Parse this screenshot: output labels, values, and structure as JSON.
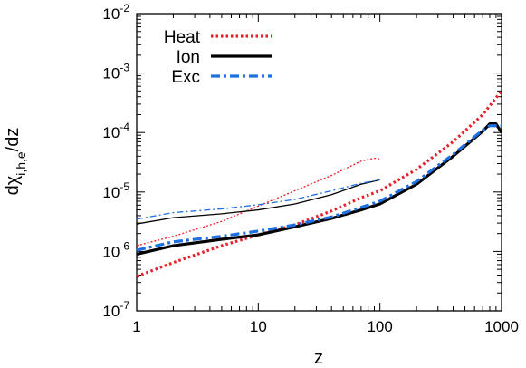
{
  "chart_data": {
    "type": "line",
    "title": "",
    "xlabel": "z",
    "ylabel_main": "dχ",
    "ylabel_sub": "i,h,e",
    "ylabel_tail": "/dz",
    "xscale": "log",
    "yscale": "log",
    "xlim": [
      1,
      1000
    ],
    "ylim": [
      1e-07,
      0.01
    ],
    "grid": false,
    "legend_position": "top-left",
    "x_ticks": [
      {
        "value": 1,
        "label": "1"
      },
      {
        "value": 10,
        "label": "10"
      },
      {
        "value": 100,
        "label": "100"
      },
      {
        "value": 1000,
        "label": "1000"
      }
    ],
    "y_ticks": [
      {
        "value": 1e-07,
        "base": "10",
        "exp": "-7"
      },
      {
        "value": 1e-06,
        "base": "10",
        "exp": "-6"
      },
      {
        "value": 1e-05,
        "base": "10",
        "exp": "-5"
      },
      {
        "value": 0.0001,
        "base": "10",
        "exp": "-4"
      },
      {
        "value": 0.001,
        "base": "10",
        "exp": "-3"
      },
      {
        "value": 0.01,
        "base": "10",
        "exp": "-2"
      }
    ],
    "series": [
      {
        "name": "Heat",
        "color": "#e8202a",
        "dash": "dotted",
        "weight": "thick",
        "in_legend": true,
        "points": [
          [
            1,
            3.8e-07
          ],
          [
            2,
            6.5e-07
          ],
          [
            5,
            1.25e-06
          ],
          [
            10,
            1.9e-06
          ],
          [
            20,
            2.8e-06
          ],
          [
            40,
            4.8e-06
          ],
          [
            70,
            8e-06
          ],
          [
            100,
            1.05e-05
          ],
          [
            200,
            2.4e-05
          ],
          [
            400,
            7e-05
          ],
          [
            700,
            0.0002
          ],
          [
            1000,
            0.0005
          ]
        ]
      },
      {
        "name": "Ion",
        "color": "#000000",
        "dash": "solid",
        "weight": "thick",
        "in_legend": true,
        "points": [
          [
            1,
            9e-07
          ],
          [
            2,
            1.25e-06
          ],
          [
            5,
            1.6e-06
          ],
          [
            10,
            1.9e-06
          ],
          [
            20,
            2.6e-06
          ],
          [
            40,
            3.6e-06
          ],
          [
            70,
            5e-06
          ],
          [
            100,
            6.3e-06
          ],
          [
            200,
            1.35e-05
          ],
          [
            400,
            4e-05
          ],
          [
            700,
            0.000105
          ],
          [
            800,
            0.00014
          ],
          [
            900,
            0.00014
          ],
          [
            1000,
            0.0001
          ]
        ]
      },
      {
        "name": "Exc",
        "color": "#1e6fe0",
        "dash": "dashdot",
        "weight": "thick",
        "in_legend": true,
        "points": [
          [
            1,
            1.05e-06
          ],
          [
            2,
            1.45e-06
          ],
          [
            5,
            1.8e-06
          ],
          [
            10,
            2.2e-06
          ],
          [
            20,
            2.8e-06
          ],
          [
            40,
            3.8e-06
          ],
          [
            70,
            5.5e-06
          ],
          [
            100,
            7e-06
          ],
          [
            200,
            1.5e-05
          ],
          [
            400,
            4.3e-05
          ],
          [
            700,
            0.00011
          ],
          [
            800,
            0.00013
          ],
          [
            1000,
            0.00013
          ]
        ]
      },
      {
        "name": "Heat (thin)",
        "color": "#e8202a",
        "dash": "dotted",
        "weight": "thin",
        "in_legend": false,
        "points": [
          [
            1,
            1.25e-06
          ],
          [
            2,
            1.8e-06
          ],
          [
            5,
            3.2e-06
          ],
          [
            10,
            5.8e-06
          ],
          [
            20,
            1.05e-05
          ],
          [
            40,
            1.9e-05
          ],
          [
            70,
            3.3e-05
          ],
          [
            90,
            3.7e-05
          ],
          [
            100,
            3.6e-05
          ]
        ]
      },
      {
        "name": "Ion (thin)",
        "color": "#000000",
        "dash": "solid",
        "weight": "thin",
        "in_legend": false,
        "points": [
          [
            1,
            2.9e-06
          ],
          [
            2,
            3.7e-06
          ],
          [
            5,
            4.3e-06
          ],
          [
            10,
            5e-06
          ],
          [
            20,
            6.3e-06
          ],
          [
            40,
            9e-06
          ],
          [
            70,
            1.35e-05
          ],
          [
            100,
            1.6e-05
          ]
        ]
      },
      {
        "name": "Exc (thin)",
        "color": "#1e6fe0",
        "dash": "dashdot",
        "weight": "thin",
        "in_legend": false,
        "points": [
          [
            1,
            3.5e-06
          ],
          [
            2,
            4.5e-06
          ],
          [
            5,
            5.2e-06
          ],
          [
            10,
            6.1e-06
          ],
          [
            20,
            7.5e-06
          ],
          [
            40,
            1.05e-05
          ],
          [
            70,
            1.4e-05
          ],
          [
            100,
            1.6e-05
          ]
        ]
      }
    ]
  }
}
